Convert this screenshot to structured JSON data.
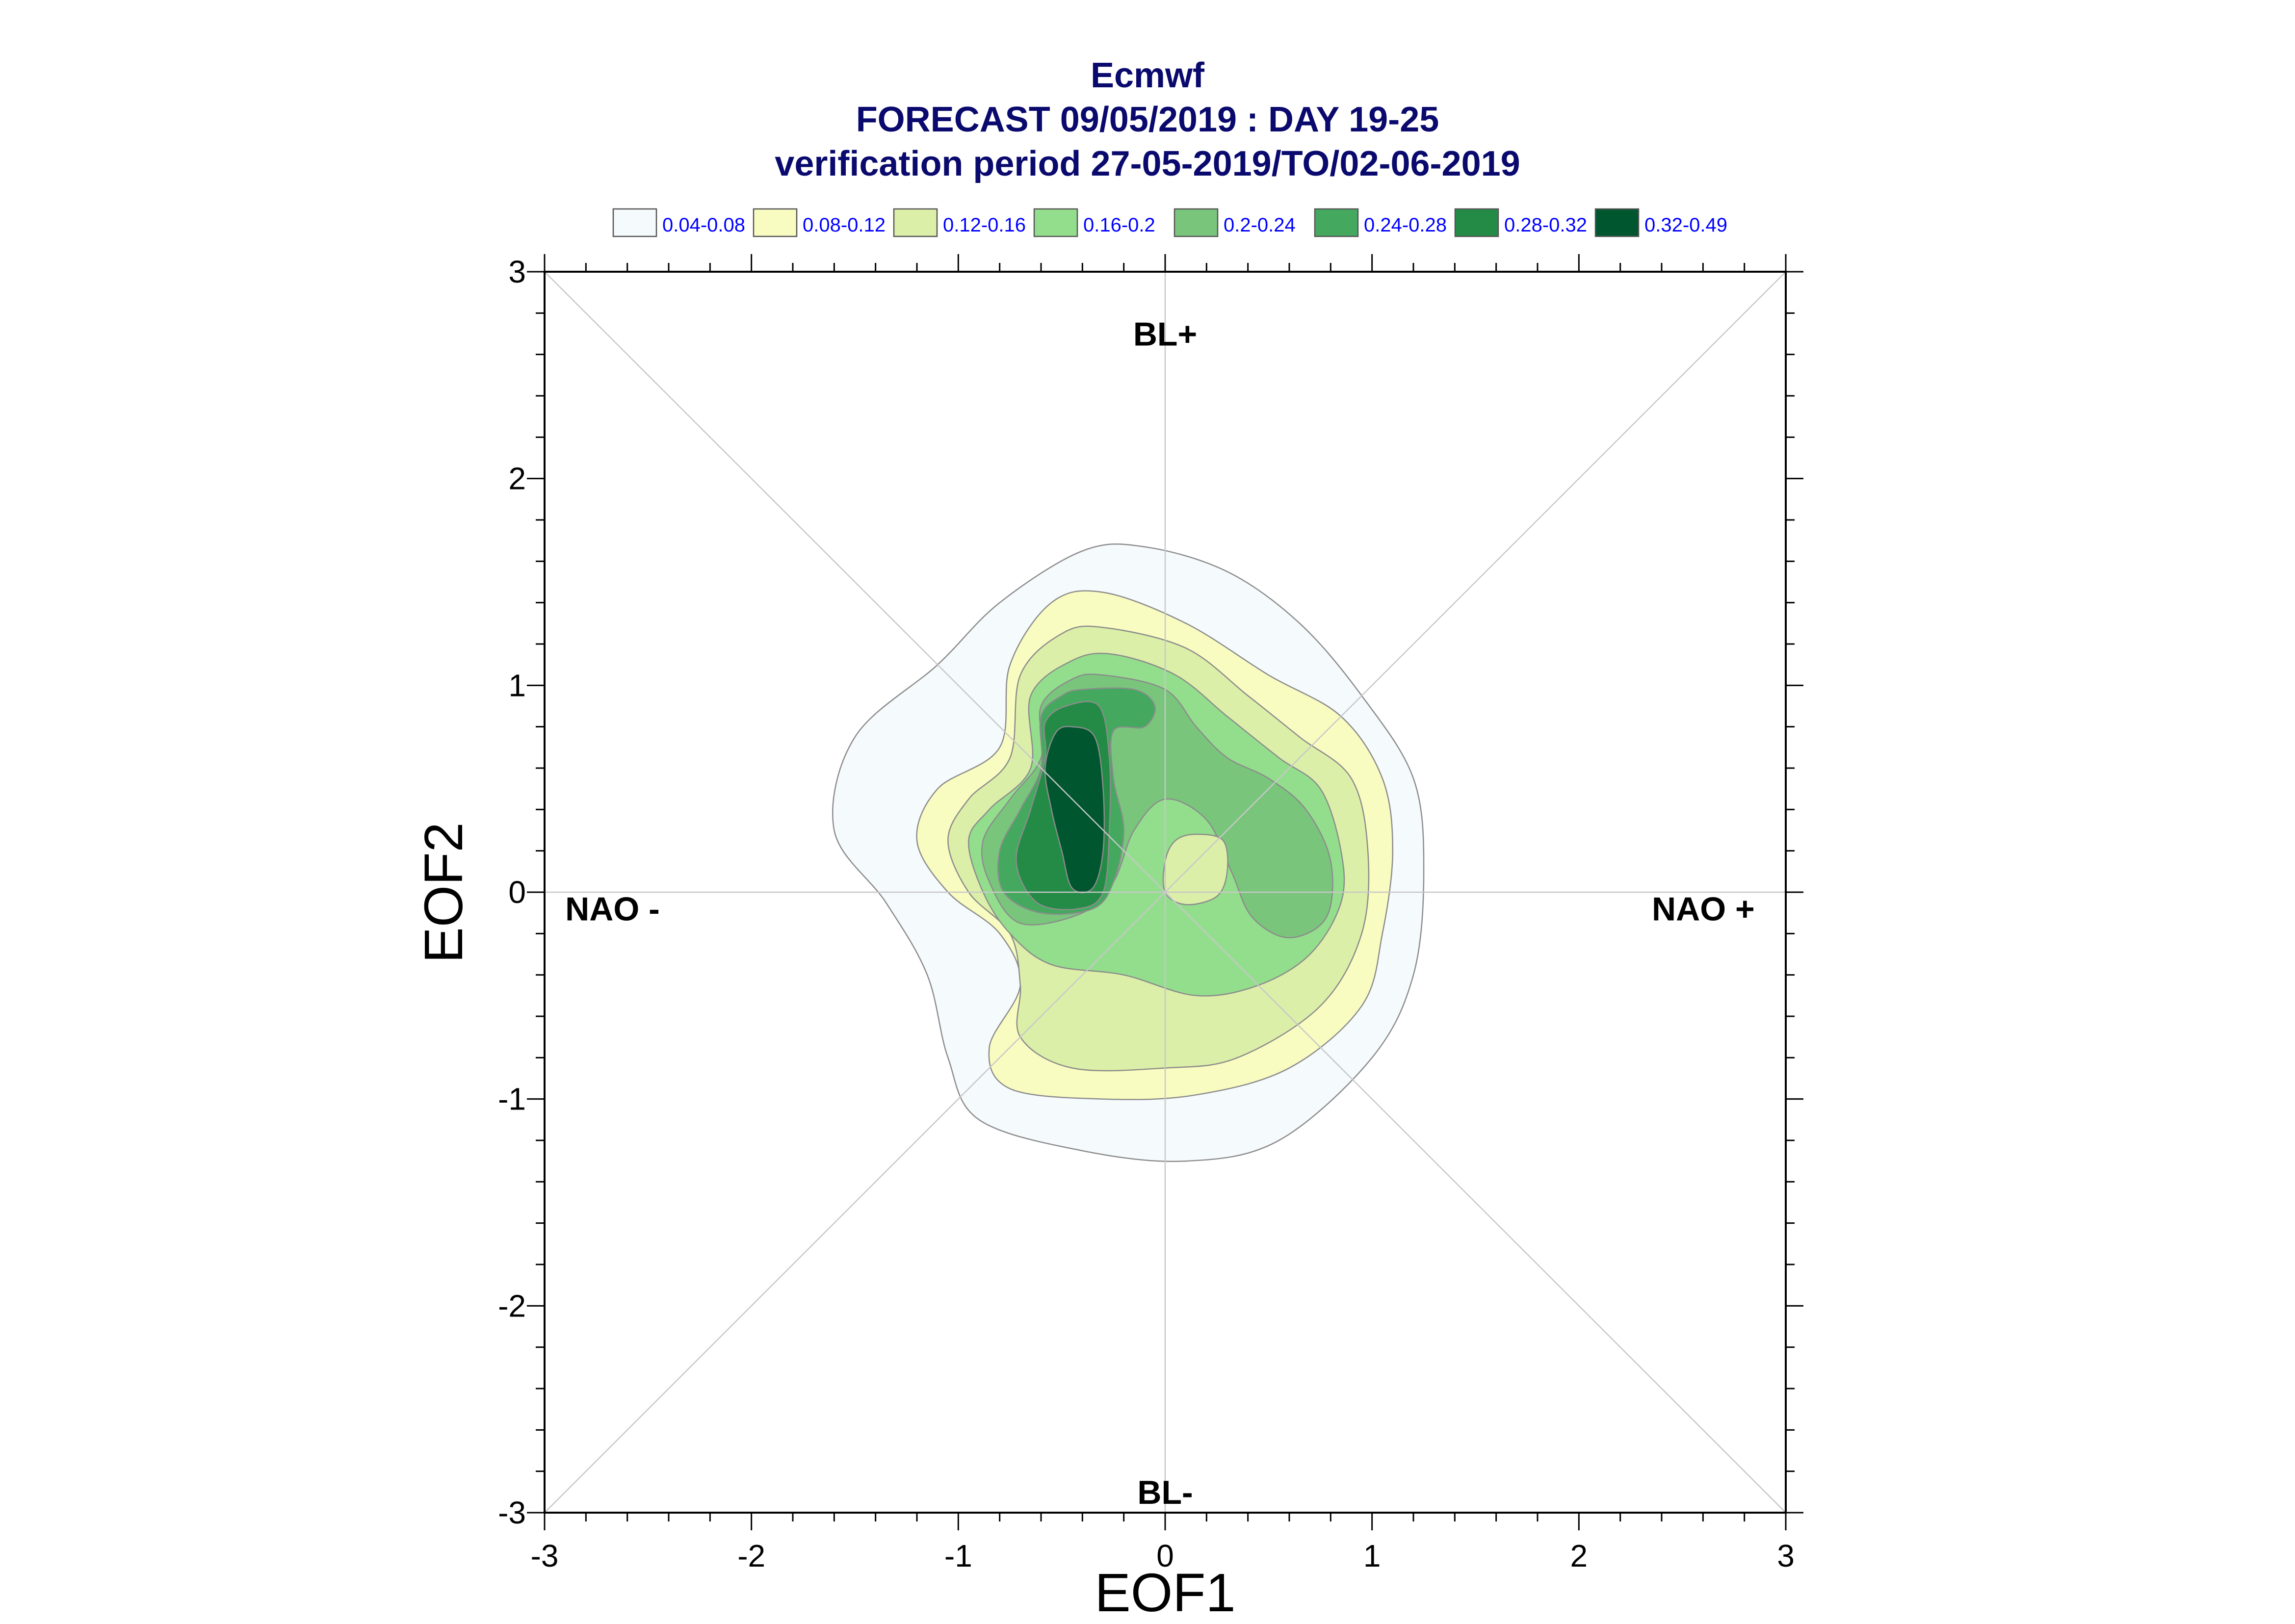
{
  "chart_data": {
    "type": "contour",
    "title": "Ecmwf",
    "subtitle": "FORECAST 09/05/2019 : DAY 19-25",
    "subtitle2": "verification period 27-05-2019/TO/02-06-2019",
    "xlabel": "EOF1",
    "ylabel": "EOF2",
    "xlim": [
      -3,
      3
    ],
    "ylim": [
      -3,
      3
    ],
    "xticks": [
      "-3",
      "-2",
      "-1",
      "0",
      "1",
      "2",
      "3"
    ],
    "yticks": [
      "-3",
      "-2",
      "-1",
      "0",
      "1",
      "2",
      "3"
    ],
    "regimes": [
      {
        "label": "BL+",
        "x": 0,
        "y": 2.7
      },
      {
        "label": "BL-",
        "x": 0,
        "y": -2.9
      },
      {
        "label": "NAO -",
        "x": -2.7,
        "y": -0.08
      },
      {
        "label": "NAO +",
        "x": 2.55,
        "y": -0.08
      }
    ],
    "legend": [
      {
        "label": "0.04-0.08",
        "color": "#f5fafd"
      },
      {
        "label": "0.08-0.12",
        "color": "#f9fcc0"
      },
      {
        "label": "0.12-0.16",
        "color": "#dcefa8"
      },
      {
        "label": "0.16-0.2",
        "color": "#93de8c"
      },
      {
        "label": "0.2-0.24",
        "color": "#79c57c"
      },
      {
        "label": "0.24-0.28",
        "color": "#44a95f"
      },
      {
        "label": "0.28-0.32",
        "color": "#238b45"
      },
      {
        "label": "0.32-0.49",
        "color": "#00562f"
      }
    ],
    "contours": [
      {
        "level": "0.04-0.08",
        "color": "#f5fafd",
        "points": [
          [
            -0.1,
            1.67
          ],
          [
            0.3,
            1.55
          ],
          [
            0.65,
            1.3
          ],
          [
            0.95,
            0.95
          ],
          [
            1.2,
            0.55
          ],
          [
            1.25,
            0.1
          ],
          [
            1.2,
            -0.4
          ],
          [
            1.0,
            -0.8
          ],
          [
            0.55,
            -1.2
          ],
          [
            0.1,
            -1.3
          ],
          [
            -0.4,
            -1.25
          ],
          [
            -0.9,
            -1.1
          ],
          [
            -1.05,
            -0.8
          ],
          [
            -1.15,
            -0.4
          ],
          [
            -1.35,
            -0.05
          ],
          [
            -1.6,
            0.3
          ],
          [
            -1.5,
            0.75
          ],
          [
            -1.1,
            1.1
          ],
          [
            -0.8,
            1.4
          ],
          [
            -0.4,
            1.65
          ]
        ]
      },
      {
        "level": "0.08-0.12",
        "color": "#f9fcc0",
        "points": [
          [
            -0.3,
            1.45
          ],
          [
            0.1,
            1.3
          ],
          [
            0.5,
            1.05
          ],
          [
            0.85,
            0.85
          ],
          [
            1.05,
            0.55
          ],
          [
            1.1,
            0.2
          ],
          [
            1.05,
            -0.2
          ],
          [
            0.95,
            -0.55
          ],
          [
            0.6,
            -0.85
          ],
          [
            0.15,
            -0.98
          ],
          [
            -0.3,
            -1.0
          ],
          [
            -0.75,
            -0.95
          ],
          [
            -0.85,
            -0.75
          ],
          [
            -0.7,
            -0.45
          ],
          [
            -0.8,
            -0.2
          ],
          [
            -1.05,
            0.0
          ],
          [
            -1.2,
            0.25
          ],
          [
            -1.1,
            0.5
          ],
          [
            -0.8,
            0.7
          ],
          [
            -0.75,
            1.1
          ],
          [
            -0.55,
            1.4
          ]
        ]
      },
      {
        "level": "0.12-0.16",
        "color": "#dcefa8",
        "points": [
          [
            -0.3,
            1.28
          ],
          [
            0.1,
            1.18
          ],
          [
            0.4,
            0.95
          ],
          [
            0.65,
            0.75
          ],
          [
            0.9,
            0.55
          ],
          [
            0.98,
            0.2
          ],
          [
            0.95,
            -0.2
          ],
          [
            0.75,
            -0.55
          ],
          [
            0.35,
            -0.8
          ],
          [
            0.0,
            -0.85
          ],
          [
            -0.45,
            -0.85
          ],
          [
            -0.7,
            -0.7
          ],
          [
            -0.7,
            -0.45
          ],
          [
            -0.75,
            -0.2
          ],
          [
            -0.95,
            0.0
          ],
          [
            -1.05,
            0.25
          ],
          [
            -0.95,
            0.45
          ],
          [
            -0.75,
            0.65
          ],
          [
            -0.7,
            1.05
          ],
          [
            -0.5,
            1.25
          ]
        ]
      },
      {
        "level": "0.16-0.2",
        "color": "#93de8c",
        "points": [
          [
            -0.25,
            1.15
          ],
          [
            0.05,
            1.05
          ],
          [
            0.3,
            0.85
          ],
          [
            0.55,
            0.65
          ],
          [
            0.75,
            0.5
          ],
          [
            0.85,
            0.2
          ],
          [
            0.85,
            -0.05
          ],
          [
            0.7,
            -0.3
          ],
          [
            0.45,
            -0.45
          ],
          [
            0.15,
            -0.5
          ],
          [
            -0.2,
            -0.4
          ],
          [
            -0.55,
            -0.35
          ],
          [
            -0.75,
            -0.2
          ],
          [
            -0.88,
            0.0
          ],
          [
            -0.95,
            0.25
          ],
          [
            -0.85,
            0.4
          ],
          [
            -0.65,
            0.6
          ],
          [
            -0.65,
            0.95
          ],
          [
            -0.45,
            1.12
          ]
        ]
      },
      {
        "level": "0.2-0.24",
        "color": "#79c57c",
        "points": [
          [
            -0.3,
            1.05
          ],
          [
            0.0,
            0.98
          ],
          [
            0.15,
            0.8
          ],
          [
            0.3,
            0.65
          ],
          [
            0.5,
            0.55
          ],
          [
            0.68,
            0.4
          ],
          [
            0.8,
            0.15
          ],
          [
            0.78,
            -0.12
          ],
          [
            0.6,
            -0.22
          ],
          [
            0.42,
            -0.12
          ],
          [
            0.32,
            0.1
          ],
          [
            0.2,
            0.35
          ],
          [
            0.0,
            0.45
          ],
          [
            -0.15,
            0.3
          ],
          [
            -0.25,
            0.05
          ],
          [
            -0.4,
            -0.1
          ],
          [
            -0.7,
            -0.15
          ],
          [
            -0.85,
            0.05
          ],
          [
            -0.88,
            0.25
          ],
          [
            -0.75,
            0.45
          ],
          [
            -0.6,
            0.65
          ],
          [
            -0.6,
            0.9
          ],
          [
            -0.45,
            1.03
          ]
        ]
      },
      {
        "level": "0.24-0.28",
        "color": "#44a95f",
        "points": [
          [
            -0.4,
            0.98
          ],
          [
            -0.15,
            0.98
          ],
          [
            -0.05,
            0.9
          ],
          [
            -0.1,
            0.8
          ],
          [
            -0.25,
            0.78
          ],
          [
            -0.25,
            0.55
          ],
          [
            -0.2,
            0.3
          ],
          [
            -0.25,
            0.05
          ],
          [
            -0.35,
            -0.08
          ],
          [
            -0.6,
            -0.1
          ],
          [
            -0.78,
            0.0
          ],
          [
            -0.8,
            0.2
          ],
          [
            -0.7,
            0.4
          ],
          [
            -0.6,
            0.6
          ],
          [
            -0.6,
            0.85
          ],
          [
            -0.5,
            0.95
          ]
        ]
      },
      {
        "level": "0.28-0.32",
        "color": "#238b45",
        "points": [
          [
            -0.48,
            0.9
          ],
          [
            -0.32,
            0.9
          ],
          [
            -0.27,
            0.65
          ],
          [
            -0.27,
            0.3
          ],
          [
            -0.3,
            0.0
          ],
          [
            -0.42,
            -0.08
          ],
          [
            -0.62,
            -0.05
          ],
          [
            -0.72,
            0.15
          ],
          [
            -0.65,
            0.4
          ],
          [
            -0.58,
            0.65
          ],
          [
            -0.58,
            0.82
          ]
        ]
      },
      {
        "level": "0.32-0.49",
        "color": "#00562f",
        "points": [
          [
            -0.45,
            0.8
          ],
          [
            -0.34,
            0.75
          ],
          [
            -0.3,
            0.5
          ],
          [
            -0.3,
            0.2
          ],
          [
            -0.35,
            0.02
          ],
          [
            -0.45,
            0.02
          ],
          [
            -0.5,
            0.2
          ],
          [
            -0.55,
            0.4
          ],
          [
            -0.58,
            0.6
          ],
          [
            -0.53,
            0.77
          ]
        ]
      },
      {
        "level": "0.12-0.16",
        "color": "#dcefa8",
        "points": [
          [
            0.15,
            0.28
          ],
          [
            0.28,
            0.25
          ],
          [
            0.3,
            0.1
          ],
          [
            0.25,
            -0.02
          ],
          [
            0.1,
            -0.06
          ],
          [
            0.0,
            0.0
          ],
          [
            0.0,
            0.15
          ],
          [
            0.05,
            0.25
          ]
        ]
      }
    ],
    "grid": "diagonals and zero lines"
  }
}
